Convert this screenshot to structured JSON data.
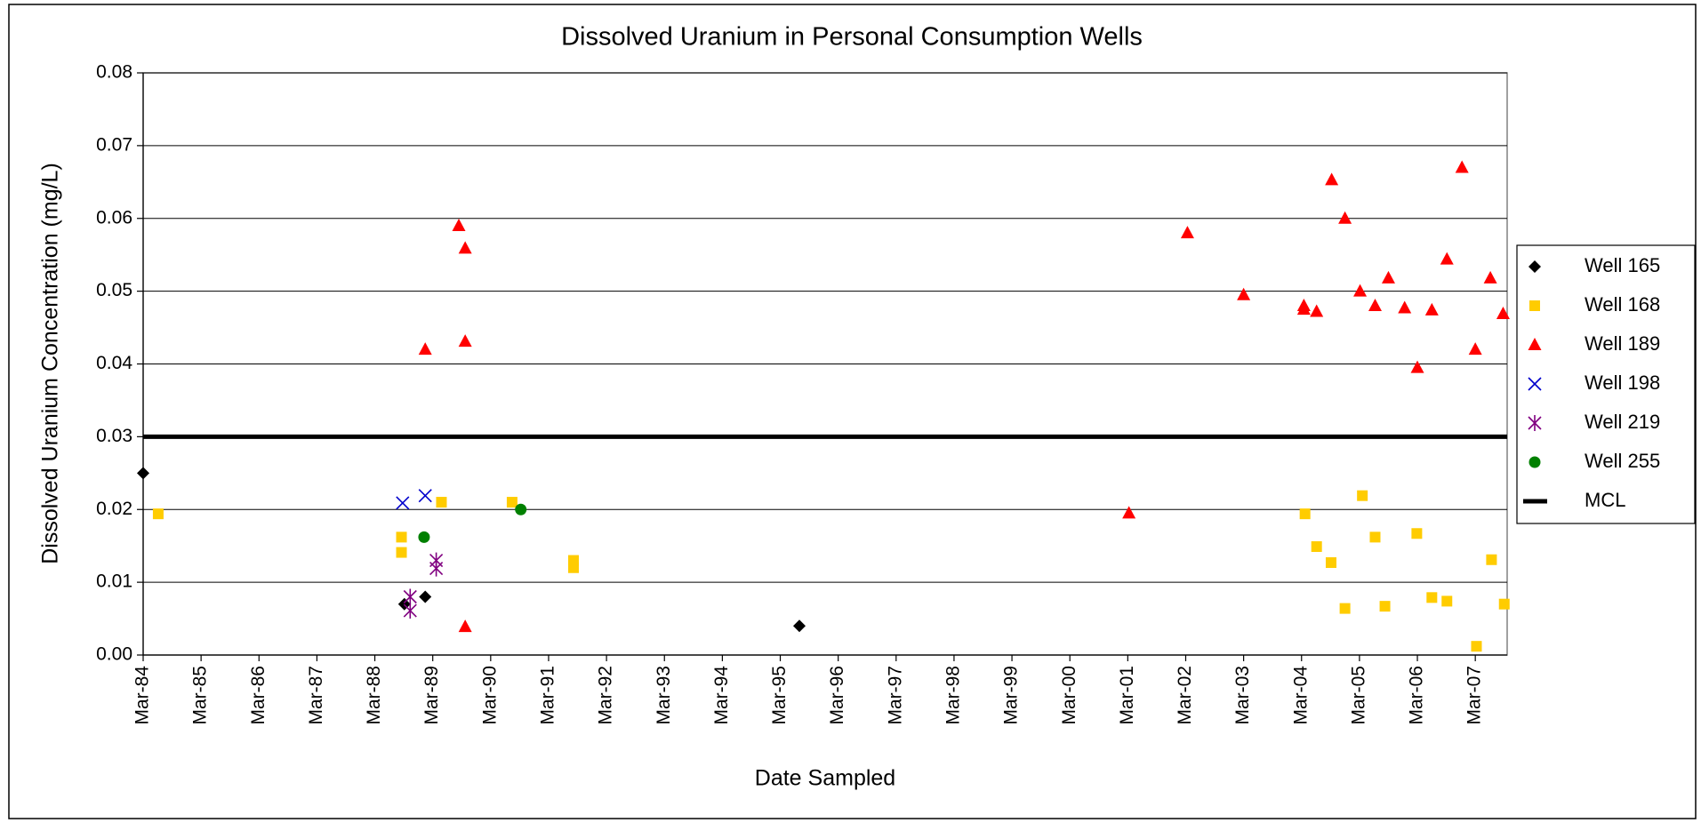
{
  "chart_data": {
    "type": "scatter",
    "title": "Dissolved Uranium in Personal Consumption Wells",
    "x_label": "Date Sampled",
    "y_label": "Dissolved Uranium Concentration (mg/L)",
    "xlim": [
      1984.2,
      2007.75
    ],
    "xticks": [
      {
        "value": 1984.2,
        "label": "Mar-84"
      },
      {
        "value": 1985.2,
        "label": "Mar-85"
      },
      {
        "value": 1986.2,
        "label": "Mar-86"
      },
      {
        "value": 1987.2,
        "label": "Mar-87"
      },
      {
        "value": 1988.2,
        "label": "Mar-88"
      },
      {
        "value": 1989.2,
        "label": "Mar-89"
      },
      {
        "value": 1990.2,
        "label": "Mar-90"
      },
      {
        "value": 1991.2,
        "label": "Mar-91"
      },
      {
        "value": 1992.2,
        "label": "Mar-92"
      },
      {
        "value": 1993.2,
        "label": "Mar-93"
      },
      {
        "value": 1994.2,
        "label": "Mar-94"
      },
      {
        "value": 1995.2,
        "label": "Mar-95"
      },
      {
        "value": 1996.2,
        "label": "Mar-96"
      },
      {
        "value": 1997.2,
        "label": "Mar-97"
      },
      {
        "value": 1998.2,
        "label": "Mar-98"
      },
      {
        "value": 1999.2,
        "label": "Mar-99"
      },
      {
        "value": 2000.2,
        "label": "Mar-00"
      },
      {
        "value": 2001.2,
        "label": "Mar-01"
      },
      {
        "value": 2002.2,
        "label": "Mar-02"
      },
      {
        "value": 2003.2,
        "label": "Mar-03"
      },
      {
        "value": 2004.2,
        "label": "Mar-04"
      },
      {
        "value": 2005.2,
        "label": "Mar-05"
      },
      {
        "value": 2006.2,
        "label": "Mar-06"
      },
      {
        "value": 2007.2,
        "label": "Mar-07"
      }
    ],
    "ylim": [
      0,
      0.08
    ],
    "yticks": [
      {
        "value": 0,
        "label": "0.00"
      },
      0.01,
      0.02,
      0.03,
      0.04,
      0.05,
      0.06,
      0.07,
      0.08
    ],
    "grid": true,
    "legend": "right",
    "series": [
      {
        "name": "Well 165",
        "color": "#000000",
        "marker": "diamond",
        "x": [
          1984.2,
          1988.71,
          1989.07,
          1995.53
        ],
        "values": [
          0.025,
          0.007,
          0.008,
          0.004
        ]
      },
      {
        "name": "Well 168",
        "color": "#ffcc00",
        "marker": "square",
        "x": [
          1984.46,
          1988.66,
          1988.66,
          1989.35,
          1990.57,
          1991.63,
          1991.63,
          2004.26,
          2004.46,
          2004.71,
          2004.95,
          2005.25,
          2005.47,
          2005.64,
          2006.19,
          2006.45,
          2006.71,
          2007.22,
          2007.48,
          2007.7
        ],
        "values": [
          0.0194,
          0.0162,
          0.0141,
          0.021,
          0.021,
          0.013,
          0.012,
          0.0194,
          0.0149,
          0.0127,
          0.0064,
          0.0219,
          0.0162,
          0.0067,
          0.0167,
          0.0079,
          0.0074,
          0.0012,
          0.0131,
          0.007
        ]
      },
      {
        "name": "Well 189",
        "color": "#ff0000",
        "marker": "triangle",
        "x": [
          1989.07,
          1989.65,
          1989.76,
          1989.76,
          1989.76,
          2001.22,
          2002.23,
          2003.2,
          2004.24,
          2004.24,
          2004.46,
          2004.72,
          2004.95,
          2005.21,
          2005.47,
          2005.7,
          2005.98,
          2006.2,
          2006.45,
          2006.71,
          2006.97,
          2007.2,
          2007.46,
          2007.68
        ],
        "values": [
          0.042,
          0.059,
          0.0559,
          0.0431,
          0.0039,
          0.0195,
          0.058,
          0.0495,
          0.048,
          0.0475,
          0.0472,
          0.0653,
          0.06,
          0.05,
          0.048,
          0.0518,
          0.0477,
          0.0395,
          0.0474,
          0.0544,
          0.067,
          0.042,
          0.0518,
          0.0469
        ]
      },
      {
        "name": "Well 198",
        "color": "#0000cc",
        "marker": "x",
        "x": [
          1988.68,
          1989.07
        ],
        "values": [
          0.0209,
          0.0219
        ]
      },
      {
        "name": "Well 219",
        "color": "#800080",
        "marker": "star",
        "x": [
          1988.81,
          1988.81,
          1989.26,
          1989.26
        ],
        "values": [
          0.008,
          0.0061,
          0.013,
          0.0119
        ]
      },
      {
        "name": "Well 255",
        "color": "#008000",
        "marker": "circle",
        "x": [
          1989.05,
          1990.72
        ],
        "values": [
          0.0162,
          0.02
        ]
      },
      {
        "name": "MCL",
        "color": "#000000",
        "marker": "line",
        "x": [
          1984.2,
          2007.75
        ],
        "values": [
          0.03,
          0.03
        ]
      }
    ]
  }
}
